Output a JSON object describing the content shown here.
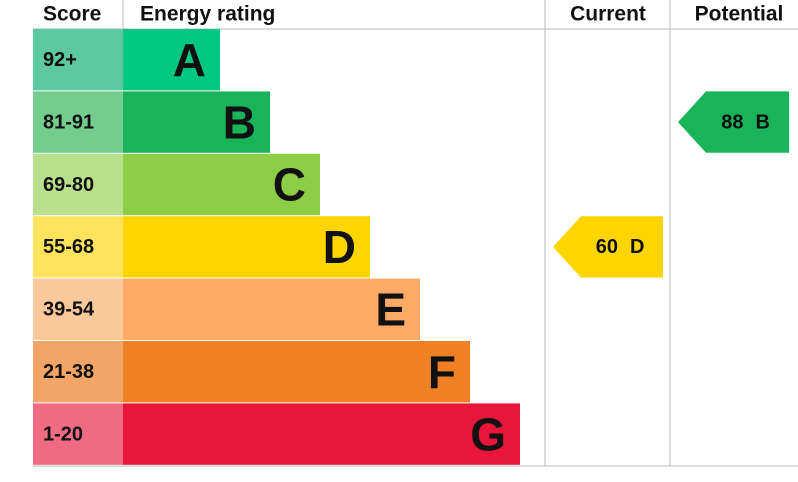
{
  "chart_data": {
    "type": "epc",
    "headers": {
      "score": "Score",
      "rating": "Energy rating",
      "current": "Current",
      "potential": "Potential"
    },
    "bands": [
      {
        "score": "92+",
        "letter": "A",
        "color": "#00c781",
        "score_color": "#5ec9a0"
      },
      {
        "score": "81-91",
        "letter": "B",
        "color": "#19b459",
        "score_color": "#74cc8e"
      },
      {
        "score": "69-80",
        "letter": "C",
        "color": "#8dce46",
        "score_color": "#b9e08c"
      },
      {
        "score": "55-68",
        "letter": "D",
        "color": "#ffd500",
        "score_color": "#ffe35c"
      },
      {
        "score": "39-54",
        "letter": "E",
        "color": "#fcaa65",
        "score_color": "#fdc89c"
      },
      {
        "score": "21-38",
        "letter": "F",
        "color": "#ef8023",
        "score_color": "#f3a567"
      },
      {
        "score": "1-20",
        "letter": "G",
        "color": "#e9153b",
        "score_color": "#ee6b82"
      }
    ],
    "current": {
      "value": 60,
      "letter": "D"
    },
    "potential": {
      "value": 88,
      "letter": "B"
    }
  }
}
